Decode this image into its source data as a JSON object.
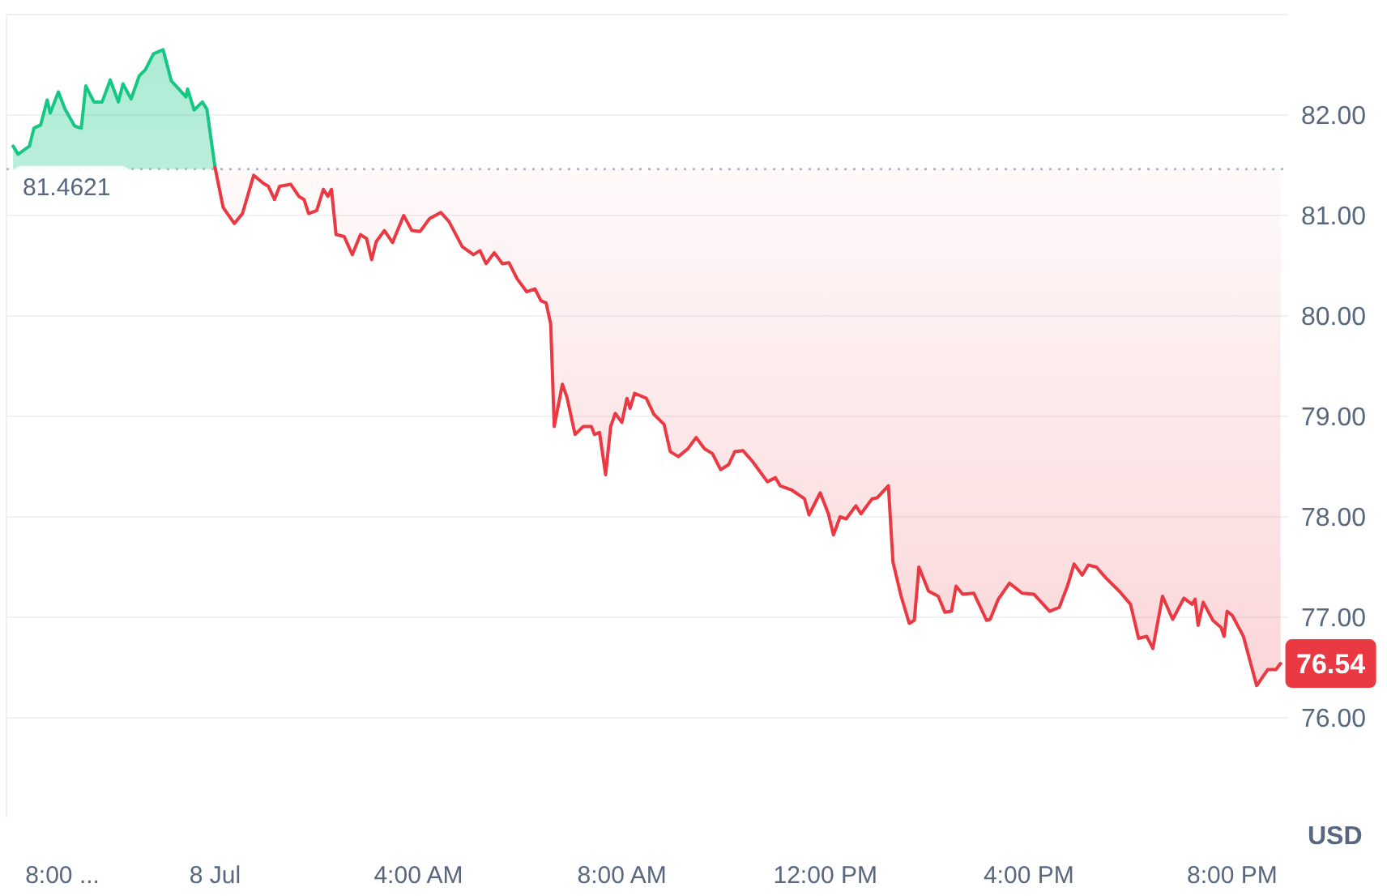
{
  "chart_data": {
    "type": "line",
    "ylabel": "USD",
    "xlim": [
      -4.1,
      21.1
    ],
    "ylim": [
      75,
      83
    ],
    "xticks": [
      {
        "value": -3,
        "label": "8:00 ..."
      },
      {
        "value": 0,
        "label": "8 Jul"
      },
      {
        "value": 4,
        "label": "4:00 AM"
      },
      {
        "value": 8,
        "label": "8:00 AM"
      },
      {
        "value": 12,
        "label": "12:00 PM"
      },
      {
        "value": 16,
        "label": "4:00 PM"
      },
      {
        "value": 20,
        "label": "8:00 PM"
      }
    ],
    "yticks": [
      {
        "value": 76,
        "label": "76.00"
      },
      {
        "value": 77,
        "label": "77.00"
      },
      {
        "value": 78,
        "label": "78.00"
      },
      {
        "value": 79,
        "label": "79.00"
      },
      {
        "value": 80,
        "label": "80.00"
      },
      {
        "value": 81,
        "label": "81.00"
      },
      {
        "value": 82,
        "label": "82.00"
      }
    ],
    "grid": "y",
    "ref_lines": [
      {
        "axis": "y",
        "value": 81.4621,
        "label": "81.4621",
        "color": "#a6b0c3",
        "line_style": "dotted"
      }
    ],
    "annotations": [
      {
        "text": "76.54",
        "x": 20.95,
        "y": 76.54
      }
    ],
    "series": [
      {
        "color": "#16c784",
        "x": [
          -3.97,
          -3.87,
          -3.65,
          -3.56,
          -3.43,
          -3.3,
          -3.24,
          -3.08,
          -2.95,
          -2.76,
          -2.63,
          -2.54,
          -2.38,
          -2.22,
          -2.06,
          -1.9,
          -1.81,
          -1.65,
          -1.49,
          -1.37,
          -1.21,
          -1.02,
          -0.86,
          -0.73,
          -0.57,
          -0.54,
          -0.41,
          -0.25,
          -0.16,
          0
        ],
        "values": [
          81.69,
          81.61,
          81.69,
          81.87,
          81.9,
          82.15,
          82.02,
          82.23,
          82.06,
          81.89,
          81.87,
          82.29,
          82.13,
          82.13,
          82.35,
          82.13,
          82.31,
          82.16,
          82.39,
          82.45,
          82.61,
          82.65,
          82.34,
          82.27,
          82.18,
          82.26,
          82.05,
          82.13,
          82.06,
          81.48
        ]
      },
      {
        "color": "#ea3943",
        "x": [
          0,
          0.16,
          0.38,
          0.54,
          0.76,
          0.95,
          1.05,
          1.17,
          1.27,
          1.49,
          1.65,
          1.75,
          1.84,
          2,
          2.13,
          2.22,
          2.29,
          2.38,
          2.54,
          2.7,
          2.86,
          2.98,
          3.08,
          3.17,
          3.33,
          3.49,
          3.71,
          3.87,
          4.03,
          4.22,
          4.44,
          4.6,
          4.86,
          5.08,
          5.21,
          5.33,
          5.49,
          5.65,
          5.78,
          5.94,
          6.13,
          6.29,
          6.41,
          6.51,
          6.6,
          6.67,
          6.83,
          6.92,
          7.08,
          7.24,
          7.4,
          7.46,
          7.56,
          7.68,
          7.78,
          7.87,
          8,
          8.1,
          8.16,
          8.25,
          8.48,
          8.63,
          8.83,
          8.95,
          9.11,
          9.3,
          9.46,
          9.62,
          9.78,
          9.94,
          10.1,
          10.22,
          10.38,
          10.57,
          10.86,
          11.02,
          11.11,
          11.33,
          11.59,
          11.68,
          11.9,
          12.06,
          12.16,
          12.29,
          12.41,
          12.6,
          12.7,
          12.92,
          13.02,
          13.24,
          13.33,
          13.49,
          13.65,
          13.75,
          13.84,
          14.03,
          14.22,
          14.35,
          14.48,
          14.57,
          14.7,
          14.92,
          15.17,
          15.24,
          15.4,
          15.62,
          15.87,
          16.1,
          16.41,
          16.6,
          16.76,
          16.89,
          17.05,
          17.17,
          17.33,
          17.52,
          17.78,
          18,
          18.16,
          18.32,
          18.44,
          18.63,
          18.83,
          19.05,
          19.21,
          19.27,
          19.33,
          19.43,
          19.62,
          19.78,
          19.84,
          19.9,
          20,
          20.22,
          20.48,
          20.7,
          20.86,
          20.95
        ],
        "values": [
          81.48,
          81.08,
          80.92,
          81.02,
          81.4,
          81.32,
          81.29,
          81.16,
          81.29,
          81.31,
          81.19,
          81.16,
          81.02,
          81.05,
          81.26,
          81.19,
          81.26,
          80.81,
          80.79,
          80.61,
          80.81,
          80.77,
          80.56,
          80.74,
          80.85,
          80.73,
          81,
          80.85,
          80.84,
          80.97,
          81.03,
          80.94,
          80.69,
          80.61,
          80.65,
          80.52,
          80.63,
          80.52,
          80.53,
          80.37,
          80.24,
          80.27,
          80.15,
          80.13,
          79.92,
          78.9,
          79.32,
          79.19,
          78.82,
          78.9,
          78.9,
          78.82,
          78.84,
          78.42,
          78.9,
          79.03,
          78.94,
          79.18,
          79.08,
          79.23,
          79.18,
          79.02,
          78.92,
          78.65,
          78.6,
          78.68,
          78.79,
          78.68,
          78.63,
          78.47,
          78.52,
          78.65,
          78.66,
          78.55,
          78.35,
          78.39,
          78.31,
          78.27,
          78.18,
          78.02,
          78.24,
          78.03,
          77.82,
          78,
          77.98,
          78.11,
          78.03,
          78.18,
          78.19,
          78.31,
          77.55,
          77.21,
          76.94,
          76.97,
          77.5,
          77.26,
          77.21,
          77.05,
          77.06,
          77.31,
          77.23,
          77.24,
          76.97,
          76.98,
          77.18,
          77.34,
          77.24,
          77.23,
          77.06,
          77.1,
          77.31,
          77.53,
          77.42,
          77.52,
          77.5,
          77.39,
          77.26,
          77.13,
          76.79,
          76.81,
          76.69,
          77.21,
          76.98,
          77.19,
          77.13,
          77.18,
          76.92,
          77.15,
          76.97,
          76.9,
          76.81,
          77.06,
          77.02,
          76.81,
          76.32,
          76.48,
          76.48,
          76.54
        ]
      }
    ]
  }
}
